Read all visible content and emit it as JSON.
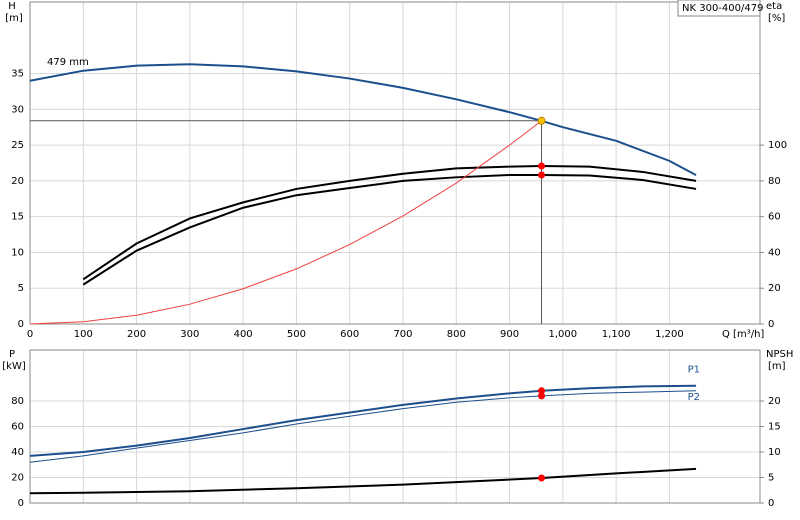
{
  "chart_data": [
    {
      "type": "line",
      "title": "NK 300-400/479",
      "annotation": "479 mm",
      "ylabel": "H",
      "yunit": "[m]",
      "y2label": "eta",
      "y2unit": "[%]",
      "xlabel": "Q [m³/h]",
      "xlim": [
        0,
        1370
      ],
      "xticks": [
        0,
        100,
        200,
        300,
        400,
        500,
        600,
        700,
        800,
        900,
        {
          "value": 1000,
          "label": "1,000"
        },
        {
          "value": 1100,
          "label": "1,100"
        },
        {
          "value": 1200,
          "label": "1,200"
        }
      ],
      "ylim": [
        0,
        45
      ],
      "yticks": [
        0,
        5,
        10,
        15,
        20,
        25,
        30,
        35
      ],
      "y2lim": [
        0,
        180
      ],
      "y2ticks": [
        0,
        20,
        40,
        60,
        80,
        100
      ],
      "grid": true,
      "series": [
        {
          "color": "#1c4f8c",
          "width": 2,
          "x": [
            0,
            100,
            200,
            300,
            400,
            500,
            600,
            700,
            800,
            900,
            960,
            1000,
            1100,
            1200,
            1250
          ],
          "values": [
            34,
            35.4,
            36.1,
            36.3,
            36,
            35.3,
            34.3,
            33,
            31.4,
            29.6,
            28.4,
            27.5,
            25.6,
            22.8,
            20.8
          ]
        },
        {
          "color": "#000000",
          "width": 2,
          "axis": "y2",
          "x": [
            100,
            200,
            300,
            400,
            500,
            600,
            700,
            800,
            900,
            960,
            1050,
            1150,
            1250
          ],
          "values": [
            25,
            45,
            59,
            68,
            75.5,
            80,
            84,
            87,
            88,
            88.3,
            88,
            85,
            80
          ]
        },
        {
          "color": "#000000",
          "width": 2,
          "axis": "y2",
          "x": [
            100,
            200,
            300,
            400,
            500,
            600,
            700,
            800,
            900,
            960,
            1050,
            1150,
            1250
          ],
          "values": [
            22,
            41,
            54,
            65,
            72,
            76,
            80,
            82,
            83.3,
            83.3,
            83,
            80.5,
            75.5
          ]
        },
        {
          "color": "#f04040",
          "width": 1,
          "x": [
            0,
            100,
            200,
            300,
            400,
            500,
            600,
            700,
            800,
            900,
            960
          ],
          "values": [
            0,
            0.31,
            1.23,
            2.77,
            4.93,
            7.7,
            11.1,
            15.1,
            19.7,
            25,
            28.4
          ]
        }
      ],
      "points": [
        {
          "x": 960,
          "y": 28.4,
          "color": "#f5c400",
          "crosshair": true
        },
        {
          "x": 960,
          "y": 88.3,
          "axis": "y2",
          "color": "#ff0000"
        },
        {
          "x": 960,
          "y": 83.3,
          "axis": "y2",
          "color": "#ff0000"
        }
      ]
    },
    {
      "type": "line",
      "ylabel": "P",
      "yunit": "[kW]",
      "y2label": "NPSH",
      "y2unit": "[m]",
      "xlim": [
        0,
        1370
      ],
      "xticks": [
        0,
        100,
        200,
        300,
        400,
        500,
        600,
        700,
        800,
        900,
        1000,
        1100,
        1200
      ],
      "show_xtick_labels": false,
      "ylim": [
        0,
        120
      ],
      "yticks": [
        0,
        20,
        40,
        60,
        80
      ],
      "y2lim": [
        0,
        30
      ],
      "y2ticks": [
        0,
        5,
        10,
        15,
        20
      ],
      "grid": true,
      "series": [
        {
          "name": "P1",
          "color": "#1c4f8c",
          "width": 2,
          "x": [
            0,
            100,
            200,
            300,
            400,
            500,
            600,
            700,
            800,
            900,
            960,
            1050,
            1150,
            1250
          ],
          "values": [
            37,
            40,
            45,
            51,
            58,
            65,
            71,
            77,
            82,
            86,
            88,
            90,
            91.5,
            92
          ]
        },
        {
          "name": "P2",
          "color": "#1c4f8c",
          "width": 1,
          "x": [
            0,
            100,
            200,
            300,
            400,
            500,
            600,
            700,
            800,
            900,
            960,
            1050,
            1150,
            1250
          ],
          "values": [
            32,
            37,
            43,
            49,
            55,
            62,
            68,
            74,
            79,
            82.5,
            84,
            86,
            87,
            88
          ]
        },
        {
          "color": "#000000",
          "width": 2,
          "axis": "y2",
          "x": [
            0,
            100,
            300,
            500,
            700,
            960,
            1100,
            1250
          ],
          "values": [
            1.9,
            2,
            2.3,
            2.9,
            3.6,
            4.9,
            5.8,
            6.7
          ]
        }
      ],
      "points": [
        {
          "x": 960,
          "y": 88,
          "color": "#ff0000"
        },
        {
          "x": 960,
          "y": 84,
          "color": "#ff0000"
        },
        {
          "x": 960,
          "y": 4.9,
          "axis": "y2",
          "color": "#ff0000"
        }
      ]
    }
  ]
}
